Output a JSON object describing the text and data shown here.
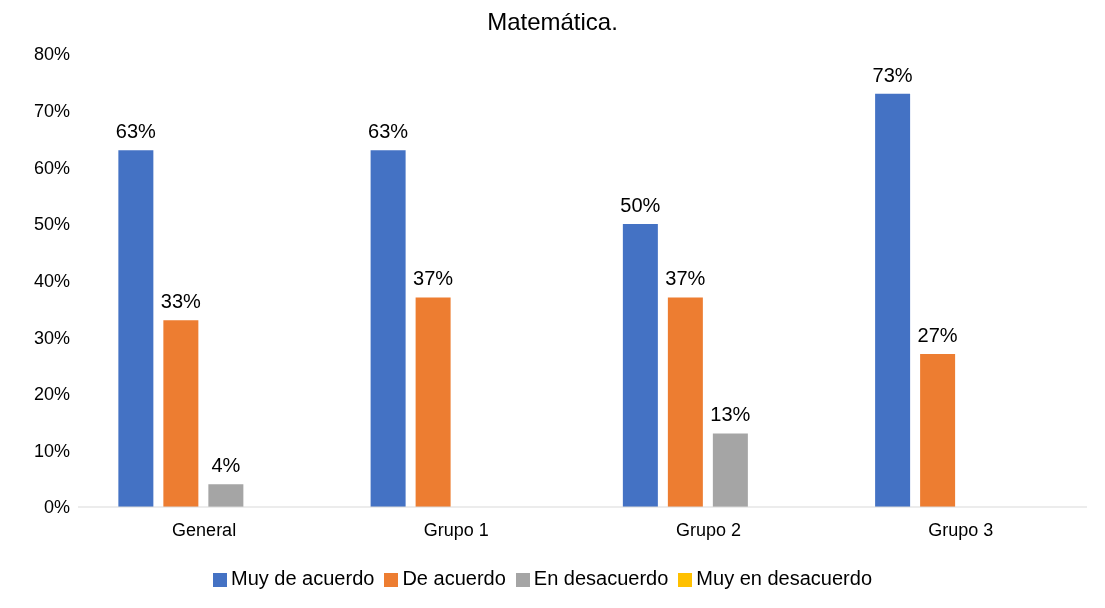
{
  "chart_data": {
    "type": "bar",
    "title": "Matemática.",
    "categories": [
      "General",
      "Grupo 1",
      "Grupo 2",
      "Grupo 3"
    ],
    "series": [
      {
        "name": "Muy de acuerdo",
        "color": "#4472c4",
        "values": [
          63,
          63,
          50,
          73
        ],
        "value_labels": [
          "63%",
          "63%",
          "50%",
          "73%"
        ]
      },
      {
        "name": "De acuerdo",
        "color": "#ed7d31",
        "values": [
          33,
          37,
          37,
          27
        ],
        "value_labels": [
          "33%",
          "37%",
          "37%",
          "27%"
        ]
      },
      {
        "name": "En desacuerdo",
        "color": "#a5a5a5",
        "values": [
          4,
          0,
          13,
          0
        ],
        "value_labels": [
          "4%",
          null,
          "13%",
          null
        ]
      },
      {
        "name": "Muy en desacuerdo",
        "color": "#ffc000",
        "values": [
          0,
          0,
          0,
          0
        ],
        "value_labels": [
          null,
          null,
          null,
          null
        ]
      }
    ],
    "ylim": [
      0,
      80
    ],
    "yticks": [
      {
        "value": 0,
        "label": "0%"
      },
      {
        "value": 10,
        "label": "10%"
      },
      {
        "value": 20,
        "label": "20%"
      },
      {
        "value": 30,
        "label": "30%"
      },
      {
        "value": 40,
        "label": "40%"
      },
      {
        "value": 50,
        "label": "50%"
      },
      {
        "value": 60,
        "label": "60%"
      },
      {
        "value": 70,
        "label": "70%"
      },
      {
        "value": 80,
        "label": "80%"
      }
    ],
    "grid": false,
    "legend": "bottom"
  }
}
